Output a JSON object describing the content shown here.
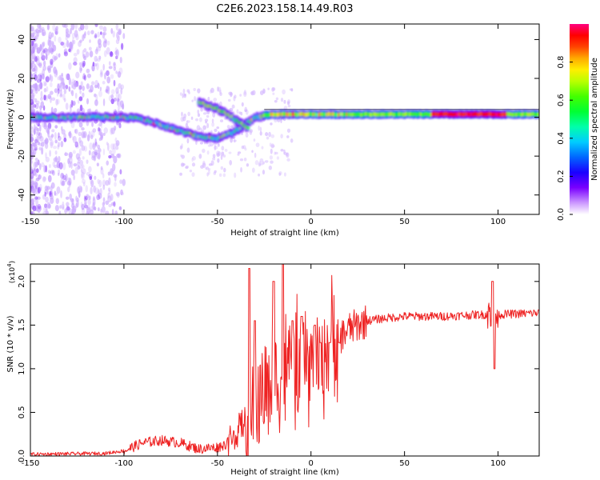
{
  "title": "C2E6.2023.158.14.49.R03",
  "colors": {
    "snr_line": "#ee2222",
    "zero_line": "#000000",
    "axis": "#000000",
    "background": "#ffffff"
  },
  "chart_data": [
    {
      "type": "heatmap",
      "name": "spectrogram",
      "xlabel": "Height of straight line (km)",
      "ylabel": "Frequency (Hz)",
      "xlim": [
        -150,
        122
      ],
      "ylim": [
        -50,
        48
      ],
      "xticks": [
        -150,
        -100,
        -50,
        0,
        50,
        100
      ],
      "yticks": [
        -40,
        -20,
        0,
        20,
        40
      ],
      "ridge": [
        {
          "x": -150,
          "y": 0
        },
        {
          "x": -120,
          "y": 0
        },
        {
          "x": -100,
          "y": 0
        },
        {
          "x": -90,
          "y": -1
        },
        {
          "x": -80,
          "y": -4
        },
        {
          "x": -70,
          "y": -7
        },
        {
          "x": -60,
          "y": -10
        },
        {
          "x": -50,
          "y": -11
        },
        {
          "x": -40,
          "y": -7
        },
        {
          "x": -30,
          "y": 0
        },
        {
          "x": -20,
          "y": 1
        },
        {
          "x": 0,
          "y": 1
        },
        {
          "x": 50,
          "y": 1
        },
        {
          "x": 122,
          "y": 1
        }
      ],
      "branch": [
        {
          "x": -60,
          "y": 8
        },
        {
          "x": -52,
          "y": 5
        },
        {
          "x": -45,
          "y": 2
        },
        {
          "x": -38,
          "y": -3
        },
        {
          "x": -33,
          "y": -6
        }
      ],
      "colorbar": {
        "label": "Normalized spectral amplitude",
        "range": [
          0.0,
          1.0
        ],
        "ticks": [
          0.0,
          0.2,
          0.4,
          0.6,
          0.8
        ]
      }
    },
    {
      "type": "line",
      "name": "snr",
      "xlabel": "Height of straight line (km)",
      "ylabel": "SNR (10 * v/v)",
      "multiplier": "(x10",
      "multiplier_exp": "4",
      "multiplier_close": ")",
      "xlim": [
        -150,
        122
      ],
      "ylim": [
        0.0,
        2.2
      ],
      "xticks": [
        -150,
        -100,
        -50,
        0,
        50,
        100
      ],
      "yticks": [
        0.0,
        0.5,
        1.0,
        1.5,
        2.0
      ],
      "ytick_labels": [
        "0.0",
        "0.5",
        "1.0",
        "1.5",
        "2.0"
      ],
      "trend": [
        {
          "x": -150,
          "y": 0.02
        },
        {
          "x": -110,
          "y": 0.03
        },
        {
          "x": -100,
          "y": 0.06
        },
        {
          "x": -90,
          "y": 0.15
        },
        {
          "x": -80,
          "y": 0.18
        },
        {
          "x": -70,
          "y": 0.15
        },
        {
          "x": -60,
          "y": 0.08
        },
        {
          "x": -50,
          "y": 0.1
        },
        {
          "x": -45,
          "y": 0.14
        },
        {
          "x": -40,
          "y": 0.25
        },
        {
          "x": -35,
          "y": 0.35
        },
        {
          "x": -30,
          "y": 0.55
        },
        {
          "x": -25,
          "y": 0.75
        },
        {
          "x": -20,
          "y": 0.9
        },
        {
          "x": -15,
          "y": 0.95
        },
        {
          "x": -10,
          "y": 1.0
        },
        {
          "x": -5,
          "y": 1.05
        },
        {
          "x": 0,
          "y": 1.05
        },
        {
          "x": 5,
          "y": 1.15
        },
        {
          "x": 10,
          "y": 1.25
        },
        {
          "x": 15,
          "y": 1.35
        },
        {
          "x": 20,
          "y": 1.45
        },
        {
          "x": 25,
          "y": 1.5
        },
        {
          "x": 30,
          "y": 1.55
        },
        {
          "x": 40,
          "y": 1.58
        },
        {
          "x": 50,
          "y": 1.6
        },
        {
          "x": 70,
          "y": 1.6
        },
        {
          "x": 90,
          "y": 1.62
        },
        {
          "x": 100,
          "y": 1.62
        },
        {
          "x": 122,
          "y": 1.64
        }
      ],
      "spikes": [
        {
          "x": -33,
          "y": 2.15
        },
        {
          "x": -30,
          "y": 1.55
        },
        {
          "x": -20,
          "y": 2.0
        },
        {
          "x": -15,
          "y": 2.2
        },
        {
          "x": -10,
          "y": 1.55
        },
        {
          "x": -5,
          "y": 1.6
        },
        {
          "x": 2,
          "y": 1.5
        },
        {
          "x": 5,
          "y": 1.3
        },
        {
          "x": 10,
          "y": 1.3
        },
        {
          "x": 15,
          "y": 1.3
        },
        {
          "x": 97,
          "y": 2.0
        },
        {
          "x": 98,
          "y": 1.0
        }
      ]
    }
  ]
}
